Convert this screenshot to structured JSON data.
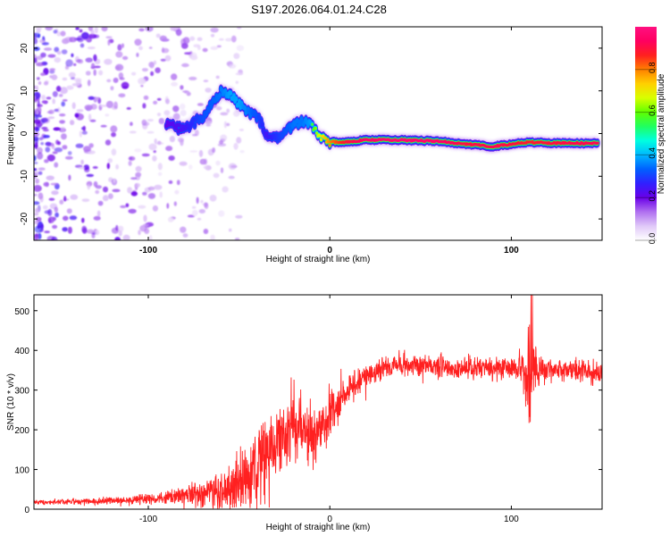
{
  "title": "S197.2026.064.01.24.C28",
  "chart_data": [
    {
      "type": "heatmap",
      "name": "spectrogram",
      "xlabel": "Height of straight line (km)",
      "ylabel": "Frequency (Hz)",
      "xlim": [
        -163,
        150
      ],
      "ylim": [
        -25,
        25
      ],
      "xticks": [
        -100,
        0,
        100
      ],
      "yticks": [
        -20,
        -10,
        0,
        10,
        20
      ],
      "colorbar": {
        "label": "Normalized spectral amplitude",
        "range": [
          0,
          1
        ],
        "ticks": [
          0.0,
          0.2,
          0.4,
          0.6,
          0.8
        ],
        "colors": [
          "#ffffff",
          "#e0c8f8",
          "#b070f0",
          "#6a00e8",
          "#3020ff",
          "#0060ff",
          "#00b8ff",
          "#00ffe0",
          "#20ff60",
          "#60ff00",
          "#d8ff00",
          "#ffd000",
          "#ff8000",
          "#ff2020",
          "#ff0060",
          "#ff1080"
        ]
      },
      "ridge": {
        "x": [
          -90,
          -80,
          -70,
          -60,
          -55,
          -50,
          -45,
          -40,
          -35,
          -30,
          -25,
          -20,
          -15,
          -10,
          -5,
          0,
          10,
          20,
          40,
          60,
          75,
          90,
          100,
          110,
          120,
          140,
          148
        ],
        "y": [
          2,
          1,
          4,
          10,
          9,
          7,
          5,
          4,
          0,
          -1,
          0,
          2,
          3,
          2,
          -1,
          -2,
          -2,
          -1.5,
          -1.5,
          -1.8,
          -2.5,
          -3,
          -2.5,
          -2,
          -2.2,
          -2.3,
          -2.3
        ],
        "amplitude": [
          0.3,
          0.35,
          0.45,
          0.5,
          0.55,
          0.55,
          0.5,
          0.45,
          0.35,
          0.4,
          0.45,
          0.5,
          0.5,
          0.55,
          0.7,
          0.8,
          0.9,
          0.95,
          0.97,
          0.95,
          0.9,
          0.92,
          0.9,
          0.88,
          0.9,
          0.92,
          0.92
        ]
      }
    },
    {
      "type": "line",
      "name": "snr",
      "xlabel": "Height of straight line (km)",
      "ylabel": "SNR (10 * v/v)",
      "xlim": [
        -163,
        150
      ],
      "ylim": [
        0,
        540
      ],
      "xticks": [
        -100,
        0,
        100
      ],
      "yticks": [
        0,
        100,
        200,
        300,
        400,
        500
      ],
      "color": "#ff2020",
      "series": [
        {
          "name": "SNR",
          "x": [
            -163,
            -150,
            -140,
            -130,
            -120,
            -110,
            -100,
            -90,
            -80,
            -70,
            -60,
            -55,
            -50,
            -45,
            -40,
            -35,
            -30,
            -25,
            -20,
            -15,
            -10,
            -5,
            0,
            5,
            10,
            15,
            20,
            25,
            30,
            40,
            50,
            60,
            70,
            80,
            90,
            100,
            105,
            108,
            110,
            112,
            115,
            120,
            130,
            140,
            150
          ],
          "y": [
            18,
            18,
            20,
            20,
            22,
            22,
            25,
            30,
            35,
            40,
            45,
            55,
            70,
            80,
            100,
            120,
            150,
            180,
            200,
            190,
            180,
            200,
            240,
            260,
            300,
            320,
            330,
            345,
            360,
            365,
            360,
            360,
            355,
            360,
            355,
            355,
            360,
            340,
            300,
            350,
            350,
            355,
            350,
            352,
            340
          ],
          "noise": [
            4,
            5,
            6,
            6,
            7,
            8,
            10,
            12,
            18,
            25,
            35,
            40,
            50,
            60,
            70,
            75,
            75,
            70,
            70,
            60,
            55,
            45,
            40,
            35,
            30,
            25,
            25,
            20,
            20,
            20,
            20,
            20,
            20,
            20,
            20,
            20,
            30,
            60,
            100,
            60,
            30,
            20,
            20,
            20,
            20
          ]
        }
      ]
    }
  ]
}
